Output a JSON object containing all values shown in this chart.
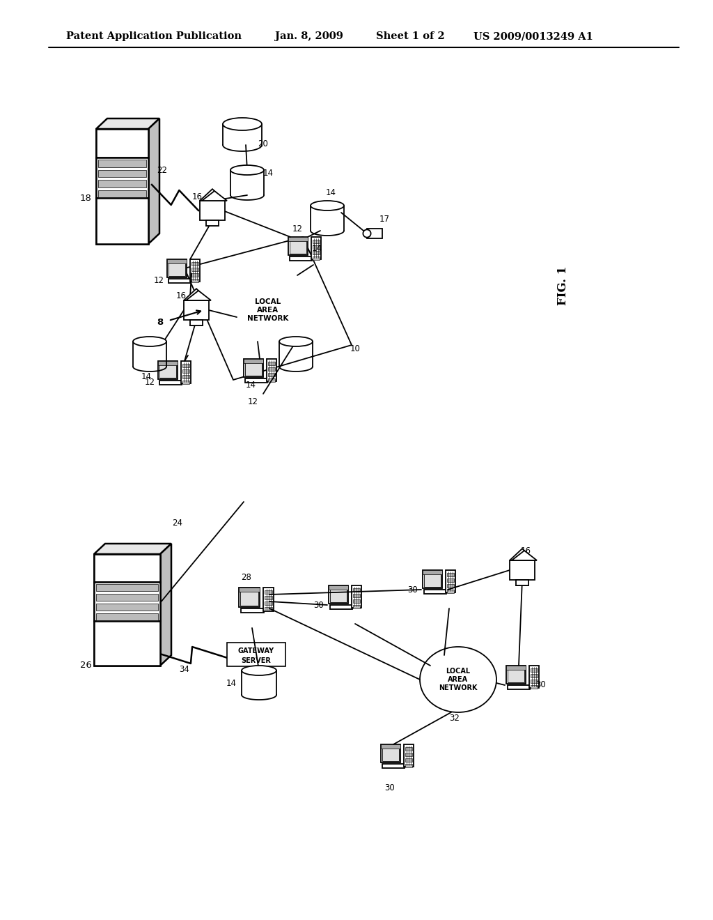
{
  "title": "Patent Application Publication",
  "date": "Jan. 8, 2009",
  "sheet": "Sheet 1 of 2",
  "patent_num": "US 2009/0013249 A1",
  "fig_label": "FIG. 1",
  "bg_color": "#ffffff",
  "line_color": "#000000",
  "header_font_size": 10.5,
  "fig_font_size": 12,
  "label_fontsize": 8.5
}
